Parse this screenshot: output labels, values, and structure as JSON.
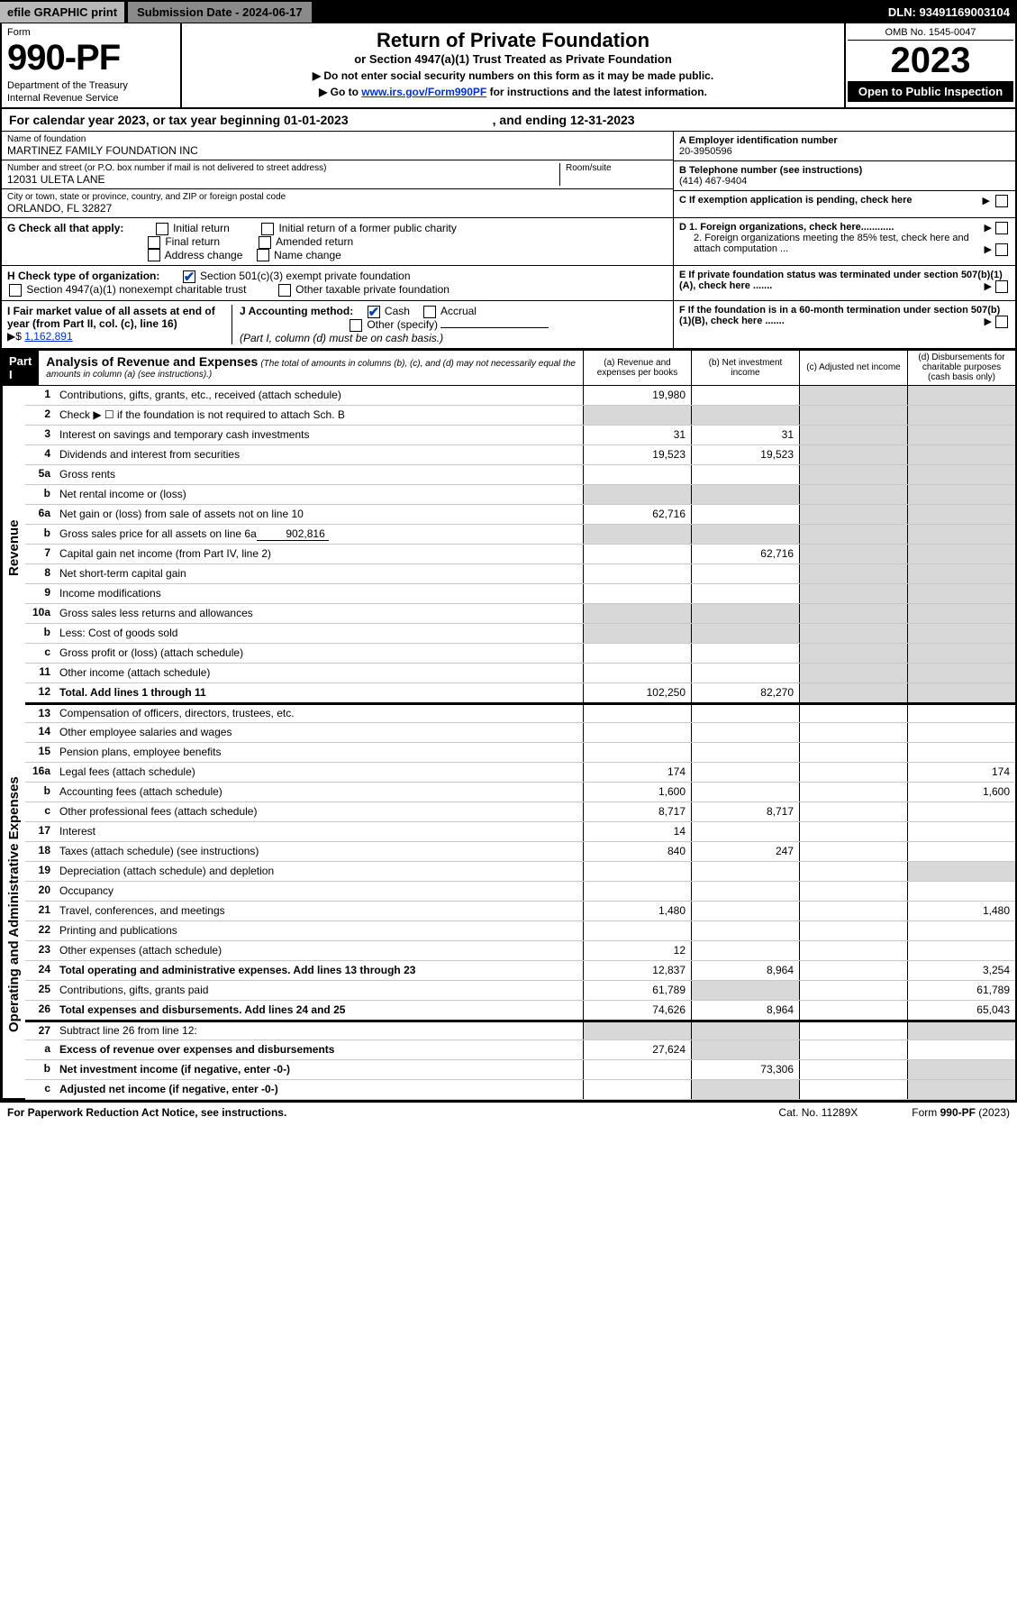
{
  "topbar": {
    "efile": "efile GRAPHIC print",
    "submission_label": "Submission Date - 2024-06-17",
    "dln": "DLN: 93491169003104"
  },
  "header": {
    "form_word": "Form",
    "form_num": "990-PF",
    "dept1": "Department of the Treasury",
    "dept2": "Internal Revenue Service",
    "title": "Return of Private Foundation",
    "subtitle": "or Section 4947(a)(1) Trust Treated as Private Foundation",
    "inst1": "▶ Do not enter social security numbers on this form as it may be made public.",
    "inst2": "▶ Go to www.irs.gov/Form990PF for instructions and the latest information.",
    "inst2_prefix": "▶ Go to ",
    "inst2_link": "www.irs.gov/Form990PF",
    "inst2_suffix": " for instructions and the latest information.",
    "omb": "OMB No. 1545-0047",
    "year": "2023",
    "open": "Open to Public Inspection"
  },
  "calyear": {
    "prefix": "For calendar year 2023, or tax year beginning 01-01-2023",
    "middle": ", and ending 12-31-2023"
  },
  "identity": {
    "name_label": "Name of foundation",
    "name": "MARTINEZ FAMILY FOUNDATION INC",
    "addr_label": "Number and street (or P.O. box number if mail is not delivered to street address)",
    "room_label": "Room/suite",
    "addr": "12031 ULETA LANE",
    "city_label": "City or town, state or province, country, and ZIP or foreign postal code",
    "city": "ORLANDO, FL  32827",
    "A_label": "A Employer identification number",
    "A_value": "20-3950596",
    "B_label": "B Telephone number (see instructions)",
    "B_value": "(414) 467-9404",
    "C_label": "C If exemption application is pending, check here"
  },
  "G": {
    "label": "G Check all that apply:",
    "initial": "Initial return",
    "initial_former": "Initial return of a former public charity",
    "final": "Final return",
    "amended": "Amended return",
    "addr_change": "Address change",
    "name_change": "Name change"
  },
  "H": {
    "label": "H Check type of organization:",
    "opt1": "Section 501(c)(3) exempt private foundation",
    "opt2": "Section 4947(a)(1) nonexempt charitable trust",
    "opt3": "Other taxable private foundation"
  },
  "I": {
    "label": "I Fair market value of all assets at end of year (from Part II, col. (c), line 16)",
    "arrow": "▶$",
    "value": "1,162,891"
  },
  "J": {
    "label": "J Accounting method:",
    "cash": "Cash",
    "accrual": "Accrual",
    "other": "Other (specify)",
    "note": "(Part I, column (d) must be on cash basis.)"
  },
  "D": {
    "d1": "D 1. Foreign organizations, check here............",
    "d2": "2. Foreign organizations meeting the 85% test, check here and attach computation ..."
  },
  "E": {
    "label": "E  If private foundation status was terminated under section 507(b)(1)(A), check here ......."
  },
  "F": {
    "label": "F  If the foundation is in a 60-month termination under section 507(b)(1)(B), check here ......."
  },
  "part1": {
    "part": "Part I",
    "title": "Analysis of Revenue and Expenses",
    "sub": "(The total of amounts in columns (b), (c), and (d) may not necessarily equal the amounts in column (a) (see instructions).)",
    "col_a": "(a)  Revenue and expenses per books",
    "col_b": "(b)  Net investment income",
    "col_c": "(c)  Adjusted net income",
    "col_d": "(d)  Disbursements for charitable purposes (cash basis only)"
  },
  "vlabels": {
    "revenue": "Revenue",
    "expenses": "Operating and Administrative Expenses"
  },
  "rows": {
    "1": {
      "ln": "1",
      "desc": "Contributions, gifts, grants, etc., received (attach schedule)",
      "a": "19,980"
    },
    "2": {
      "ln": "2",
      "desc": "Check ▶ ☐ if the foundation is not required to attach Sch. B"
    },
    "3": {
      "ln": "3",
      "desc": "Interest on savings and temporary cash investments",
      "a": "31",
      "b": "31"
    },
    "4": {
      "ln": "4",
      "desc": "Dividends and interest from securities",
      "a": "19,523",
      "b": "19,523"
    },
    "5a": {
      "ln": "5a",
      "desc": "Gross rents"
    },
    "5b": {
      "ln": "b",
      "desc": "Net rental income or (loss)"
    },
    "6a": {
      "ln": "6a",
      "desc": "Net gain or (loss) from sale of assets not on line 10",
      "a": "62,716"
    },
    "6b": {
      "ln": "b",
      "desc": "Gross sales price for all assets on line 6a",
      "inline": "902,816"
    },
    "7": {
      "ln": "7",
      "desc": "Capital gain net income (from Part IV, line 2)",
      "b": "62,716"
    },
    "8": {
      "ln": "8",
      "desc": "Net short-term capital gain"
    },
    "9": {
      "ln": "9",
      "desc": "Income modifications"
    },
    "10a": {
      "ln": "10a",
      "desc": "Gross sales less returns and allowances"
    },
    "10b": {
      "ln": "b",
      "desc": "Less: Cost of goods sold"
    },
    "10c": {
      "ln": "c",
      "desc": "Gross profit or (loss) (attach schedule)"
    },
    "11": {
      "ln": "11",
      "desc": "Other income (attach schedule)"
    },
    "12": {
      "ln": "12",
      "desc": "Total. Add lines 1 through 11",
      "a": "102,250",
      "b": "82,270",
      "bold": true
    },
    "13": {
      "ln": "13",
      "desc": "Compensation of officers, directors, trustees, etc."
    },
    "14": {
      "ln": "14",
      "desc": "Other employee salaries and wages"
    },
    "15": {
      "ln": "15",
      "desc": "Pension plans, employee benefits"
    },
    "16a": {
      "ln": "16a",
      "desc": "Legal fees (attach schedule)",
      "a": "174",
      "d": "174"
    },
    "16b": {
      "ln": "b",
      "desc": "Accounting fees (attach schedule)",
      "a": "1,600",
      "d": "1,600"
    },
    "16c": {
      "ln": "c",
      "desc": "Other professional fees (attach schedule)",
      "a": "8,717",
      "b": "8,717"
    },
    "17": {
      "ln": "17",
      "desc": "Interest",
      "a": "14"
    },
    "18": {
      "ln": "18",
      "desc": "Taxes (attach schedule) (see instructions)",
      "a": "840",
      "b": "247"
    },
    "19": {
      "ln": "19",
      "desc": "Depreciation (attach schedule) and depletion"
    },
    "20": {
      "ln": "20",
      "desc": "Occupancy"
    },
    "21": {
      "ln": "21",
      "desc": "Travel, conferences, and meetings",
      "a": "1,480",
      "d": "1,480"
    },
    "22": {
      "ln": "22",
      "desc": "Printing and publications"
    },
    "23": {
      "ln": "23",
      "desc": "Other expenses (attach schedule)",
      "a": "12"
    },
    "24": {
      "ln": "24",
      "desc": "Total operating and administrative expenses. Add lines 13 through 23",
      "a": "12,837",
      "b": "8,964",
      "d": "3,254",
      "bold": true
    },
    "25": {
      "ln": "25",
      "desc": "Contributions, gifts, grants paid",
      "a": "61,789",
      "d": "61,789"
    },
    "26": {
      "ln": "26",
      "desc": "Total expenses and disbursements. Add lines 24 and 25",
      "a": "74,626",
      "b": "8,964",
      "d": "65,043",
      "bold": true
    },
    "27": {
      "ln": "27",
      "desc": "Subtract line 26 from line 12:"
    },
    "27a": {
      "ln": "a",
      "desc": "Excess of revenue over expenses and disbursements",
      "a": "27,624",
      "bold": true
    },
    "27b": {
      "ln": "b",
      "desc": "Net investment income (if negative, enter -0-)",
      "b": "73,306",
      "bold": true
    },
    "27c": {
      "ln": "c",
      "desc": "Adjusted net income (if negative, enter -0-)",
      "bold": true
    }
  },
  "footer": {
    "left": "For Paperwork Reduction Act Notice, see instructions.",
    "mid": "Cat. No. 11289X",
    "right": "Form 990-PF (2023)"
  }
}
